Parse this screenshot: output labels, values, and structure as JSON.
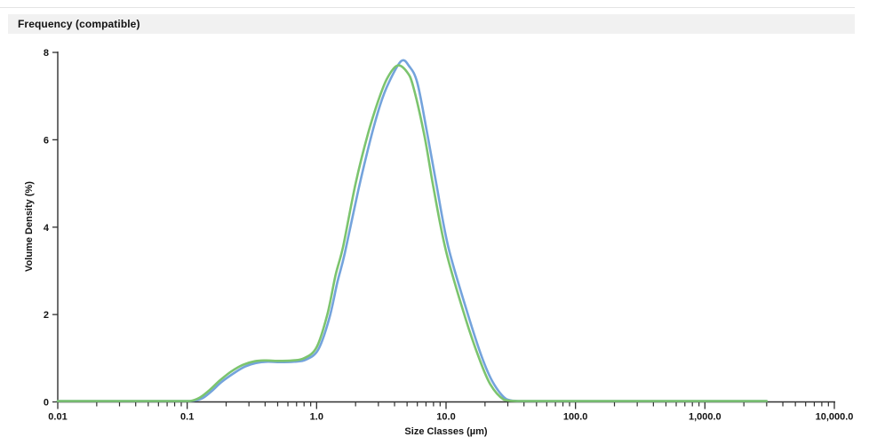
{
  "header": {
    "title": "Frequency (compatible)"
  },
  "colors": {
    "header_bg": "#f1f1f1",
    "top_rule": "#e4e4e4",
    "axis": "#2f2f2f",
    "tick_text": "#141414",
    "series_blue": "#74a3dc",
    "series_green": "#7cc46e"
  },
  "chart_data": {
    "type": "line",
    "title": "Frequency (compatible)",
    "xlabel": "Size Classes (µm)",
    "ylabel": "Volume Density (%)",
    "x_scale": "log",
    "xlim": [
      0.01,
      10000
    ],
    "ylim": [
      0,
      8
    ],
    "grid": false,
    "legend": "none",
    "x_tick_values": [
      0.01,
      0.1,
      1,
      10,
      100,
      1000,
      10000
    ],
    "x_tick_labels": [
      "0.01",
      "0.1",
      "1.0",
      "10.0",
      "100.0",
      "1,000.0",
      "10,000.0"
    ],
    "y_tick_values": [
      0,
      2,
      4,
      6,
      8
    ],
    "y_tick_labels": [
      "0",
      "2",
      "4",
      "6",
      "8"
    ],
    "series": [
      {
        "name": "blue",
        "color": "#74a3dc",
        "peak": {
          "x": 4.5,
          "y": 7.8
        },
        "x": [
          0.01,
          0.04,
          0.08,
          0.107,
          0.13,
          0.155,
          0.185,
          0.23,
          0.28,
          0.34,
          0.42,
          0.52,
          0.67,
          0.83,
          1.03,
          1.25,
          1.45,
          1.65,
          2.1,
          2.6,
          3.1,
          3.6,
          4.5,
          5.2,
          6.0,
          7.1,
          8.4,
          10.4,
          14.6,
          18.8,
          23.0,
          29.0,
          36.0,
          50,
          100,
          500,
          1000,
          3000
        ],
        "y": [
          0,
          0,
          0,
          0,
          0.08,
          0.25,
          0.46,
          0.66,
          0.81,
          0.89,
          0.92,
          0.91,
          0.92,
          0.97,
          1.2,
          1.9,
          2.75,
          3.4,
          4.85,
          6.0,
          6.8,
          7.3,
          7.8,
          7.68,
          7.3,
          6.2,
          5.0,
          3.55,
          2.05,
          1.05,
          0.45,
          0.07,
          0,
          0,
          0,
          0,
          0,
          0
        ]
      },
      {
        "name": "green",
        "color": "#7cc46e",
        "peak": {
          "x": 4.2,
          "y": 7.7
        },
        "x": [
          0.01,
          0.04,
          0.08,
          0.105,
          0.125,
          0.15,
          0.18,
          0.22,
          0.27,
          0.33,
          0.4,
          0.5,
          0.65,
          0.8,
          1.0,
          1.21,
          1.4,
          1.6,
          2.0,
          2.5,
          3.0,
          3.5,
          4.2,
          5.0,
          5.6,
          6.8,
          8.0,
          10.0,
          14.0,
          18.0,
          22.0,
          28.0,
          35.0,
          50,
          100,
          500,
          1000,
          3000
        ],
        "y": [
          0,
          0,
          0,
          0,
          0.1,
          0.28,
          0.5,
          0.7,
          0.85,
          0.93,
          0.95,
          0.94,
          0.95,
          1.0,
          1.25,
          2.0,
          2.9,
          3.55,
          5.0,
          6.15,
          6.9,
          7.4,
          7.7,
          7.55,
          7.2,
          6.1,
          4.9,
          3.45,
          1.95,
          1.0,
          0.4,
          0.05,
          0,
          0,
          0,
          0,
          0,
          0
        ]
      }
    ]
  }
}
